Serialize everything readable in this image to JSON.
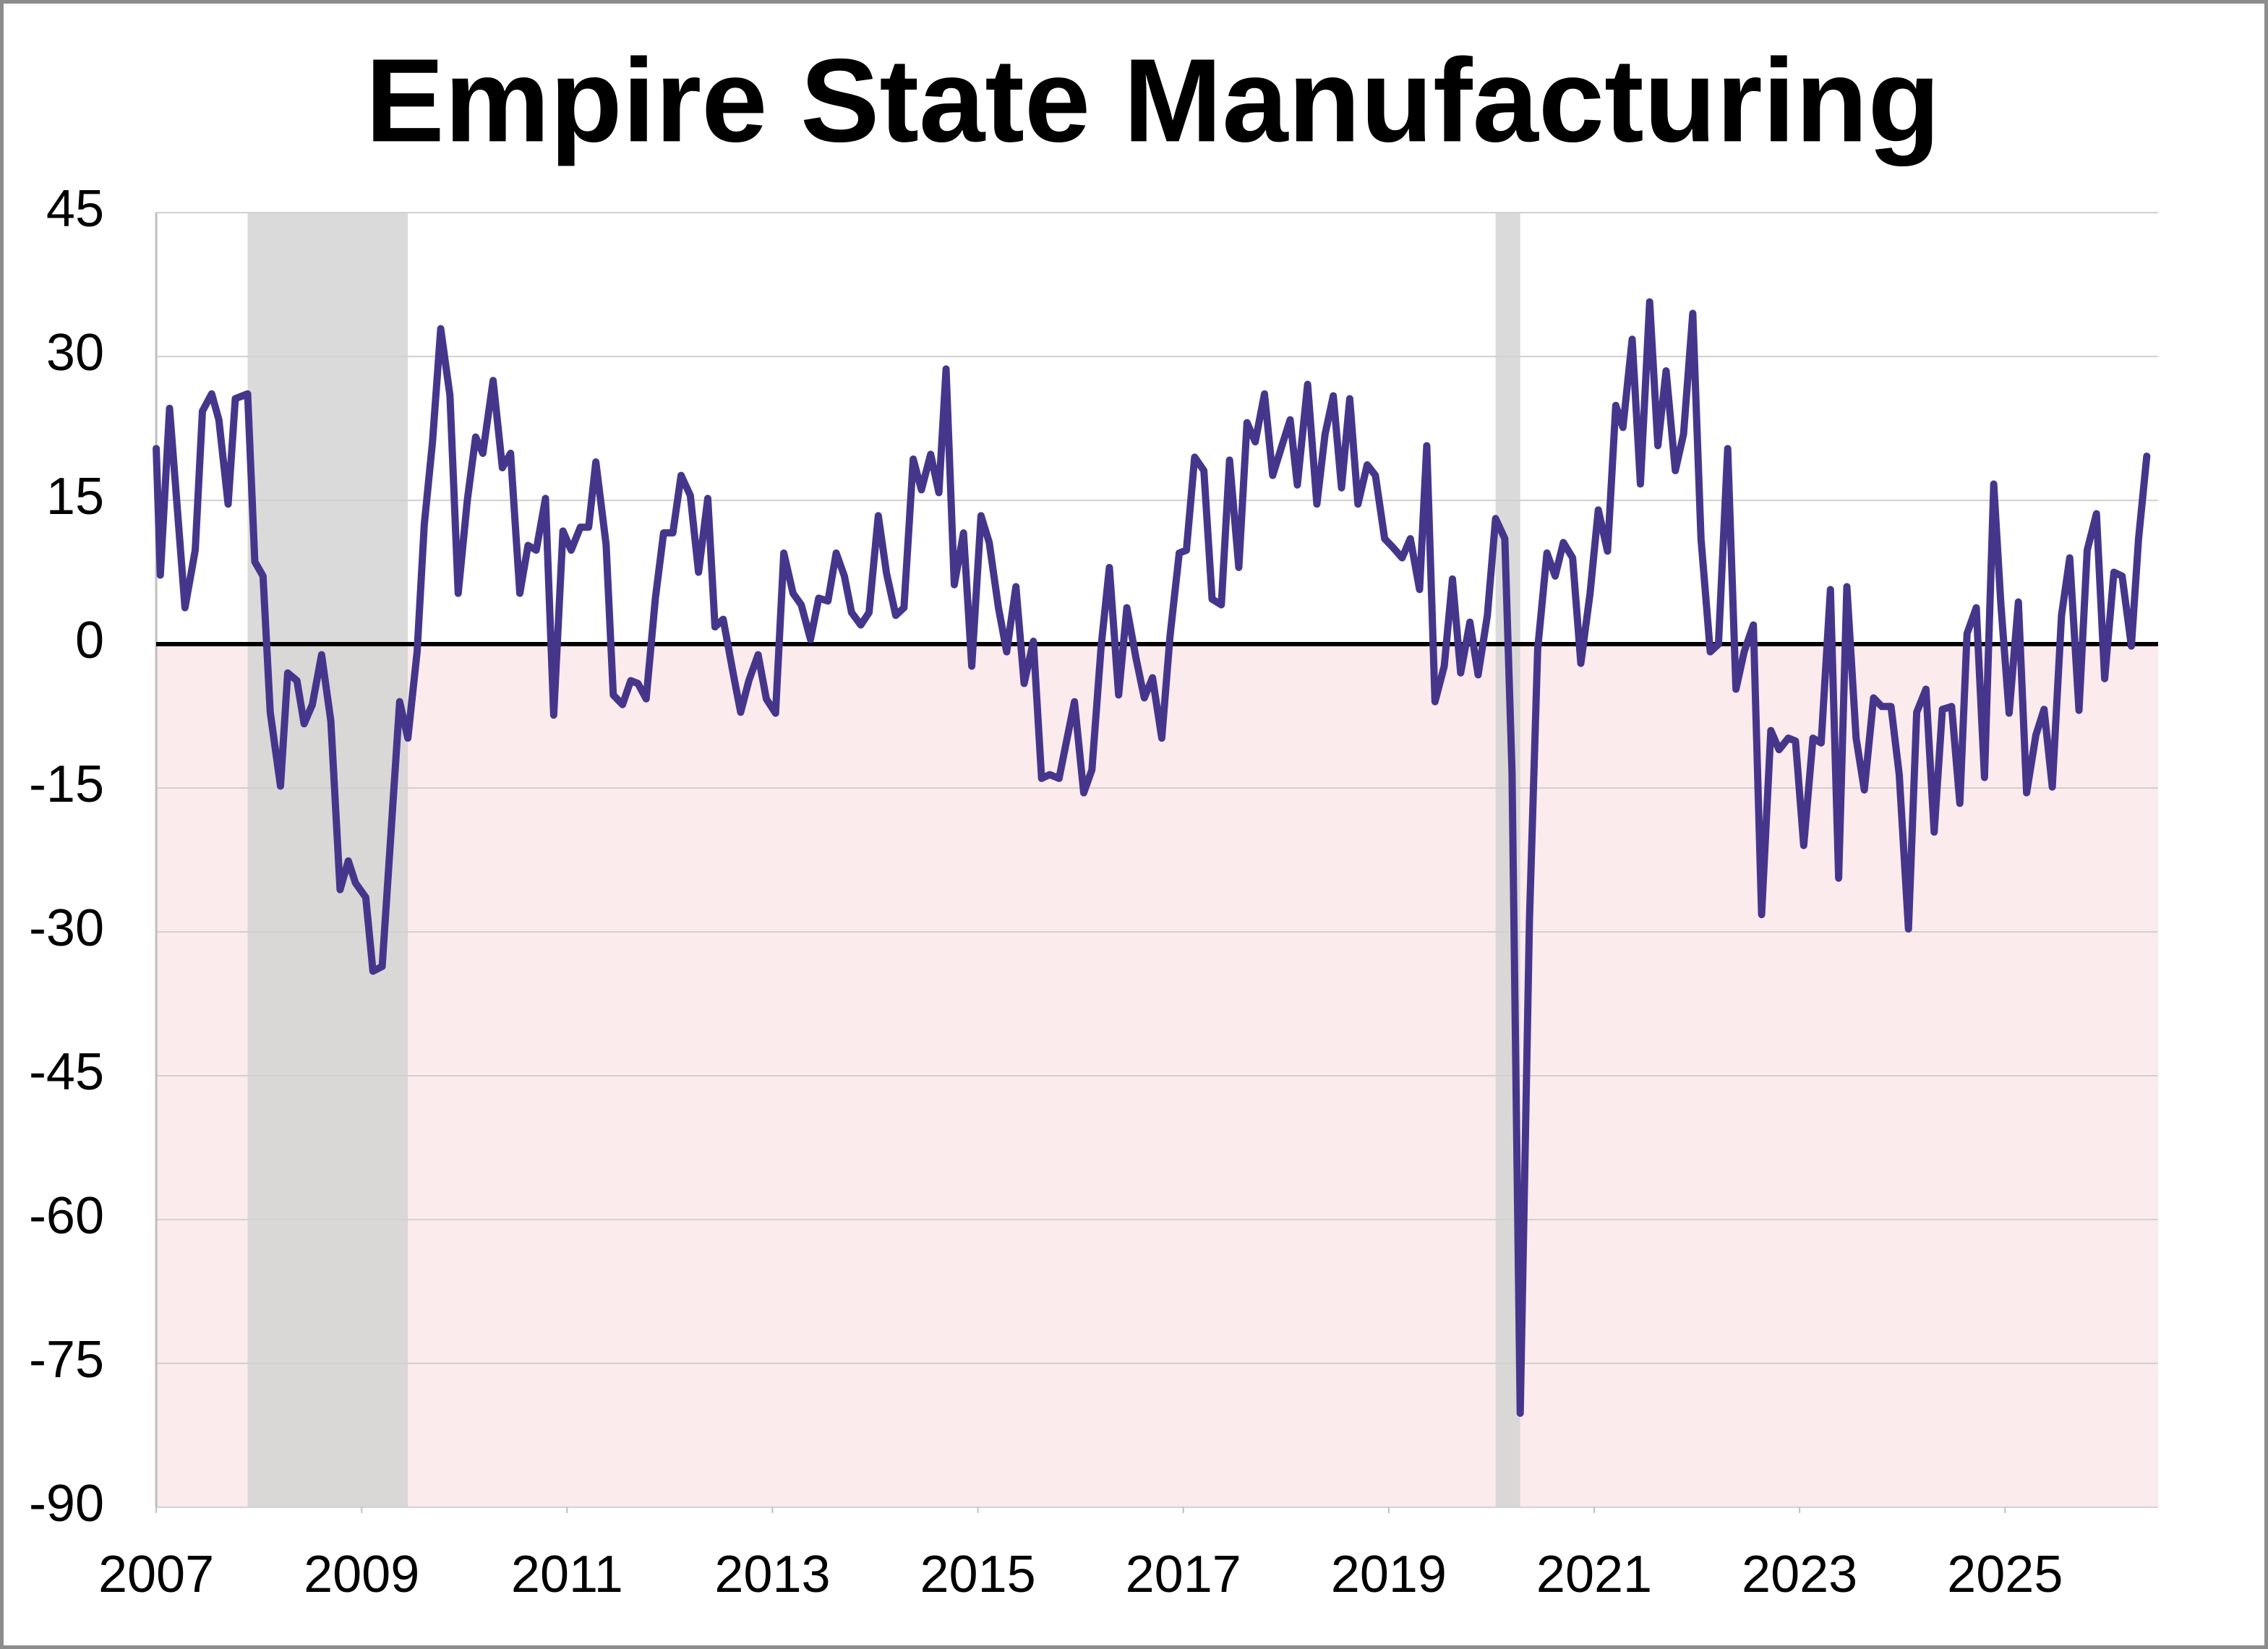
{
  "chart_data": {
    "type": "line",
    "title": "Empire State Manufacturing",
    "color": "#46368b",
    "negative_shading": "#fcebec",
    "recession_color": "#d3d3d3",
    "recessions": [
      [
        2007.89,
        2009.45
      ],
      [
        2020.04,
        2020.28
      ]
    ],
    "grid": true,
    "xlim": [
      2007,
      2026.49
    ],
    "xticks": [
      2007,
      2009,
      2011,
      2013,
      2015,
      2017,
      2019,
      2021,
      2023,
      2025
    ],
    "ylim": [
      -90,
      45
    ],
    "yticks": [
      -90,
      -75,
      -60,
      -45,
      -30,
      -15,
      0,
      15,
      30,
      45
    ],
    "x": [
      2007.0,
      2007.04,
      2007.13,
      2007.28,
      2007.38,
      2007.45,
      2007.54,
      2007.61,
      2007.7,
      2007.77,
      2007.89,
      2007.96,
      2008.04,
      2008.11,
      2008.21,
      2008.28,
      2008.37,
      2008.44,
      2008.52,
      2008.61,
      2008.7,
      2008.79,
      2008.87,
      2008.94,
      2009.04,
      2009.11,
      2009.2,
      2009.37,
      2009.45,
      2009.54,
      2009.61,
      2009.69,
      2009.77,
      2009.86,
      2009.94,
      2010.03,
      2010.11,
      2010.18,
      2010.28,
      2010.37,
      2010.45,
      2010.54,
      2010.62,
      2010.7,
      2010.79,
      2010.87,
      2010.96,
      2011.04,
      2011.13,
      2011.21,
      2011.28,
      2011.38,
      2011.45,
      2011.54,
      2011.62,
      2011.69,
      2011.77,
      2011.86,
      2011.94,
      2012.03,
      2012.11,
      2012.2,
      2012.28,
      2012.37,
      2012.44,
      2012.52,
      2012.62,
      2012.69,
      2012.77,
      2012.86,
      2012.94,
      2013.03,
      2013.11,
      2013.2,
      2013.28,
      2013.37,
      2013.45,
      2013.54,
      2013.62,
      2013.7,
      2013.77,
      2013.86,
      2013.94,
      2014.03,
      2014.11,
      2014.2,
      2014.28,
      2014.37,
      2014.45,
      2014.54,
      2014.62,
      2014.69,
      2014.77,
      2014.86,
      2014.94,
      2015.03,
      2015.11,
      2015.2,
      2015.28,
      2015.37,
      2015.45,
      2015.54,
      2015.62,
      2015.7,
      2015.79,
      2015.94,
      2016.03,
      2016.11,
      2016.2,
      2016.28,
      2016.37,
      2016.45,
      2016.54,
      2016.62,
      2016.7,
      2016.79,
      2016.87,
      2016.96,
      2017.03,
      2017.11,
      2017.2,
      2017.28,
      2017.37,
      2017.45,
      2017.54,
      2017.62,
      2017.7,
      2017.79,
      2017.87,
      2017.96,
      2018.04,
      2018.11,
      2018.21,
      2018.3,
      2018.38,
      2018.46,
      2018.54,
      2018.62,
      2018.7,
      2018.79,
      2018.87,
      2018.96,
      2019.04,
      2019.13,
      2019.21,
      2019.3,
      2019.37,
      2019.45,
      2019.54,
      2019.62,
      2019.7,
      2019.79,
      2019.87,
      2019.96,
      2020.04,
      2020.13,
      2020.2,
      2020.28,
      2020.37,
      2020.45,
      2020.54,
      2020.62,
      2020.7,
      2020.79,
      2020.87,
      2020.96,
      2021.04,
      2021.13,
      2021.21,
      2021.28,
      2021.37,
      2021.45,
      2021.54,
      2021.62,
      2021.7,
      2021.79,
      2021.87,
      2021.96,
      2022.04,
      2022.13,
      2022.21,
      2022.3,
      2022.38,
      2022.46,
      2022.55,
      2022.63,
      2022.72,
      2022.8,
      2022.89,
      2022.96,
      2023.04,
      2023.13,
      2023.21,
      2023.3,
      2023.38,
      2023.46,
      2023.55,
      2023.63,
      2023.72,
      2023.8,
      2023.89,
      2023.97,
      2024.06,
      2024.14,
      2024.23,
      2024.31,
      2024.39,
      2024.48,
      2024.56,
      2024.63,
      2024.72,
      2024.8,
      2024.89,
      2024.96,
      2025.04,
      2025.13,
      2025.21,
      2025.3,
      2025.38,
      2025.46,
      2025.55,
      2025.63,
      2025.72,
      2025.8,
      2025.89,
      2025.97,
      2026.06,
      2026.14,
      2026.23,
      2026.3,
      2026.38
    ],
    "values": [
      20.4,
      7.2,
      24.6,
      3.8,
      9.8,
      24.3,
      26.1,
      23.4,
      14.6,
      25.6,
      26.1,
      8.6,
      7.1,
      -7.1,
      -14.8,
      -3.0,
      -3.8,
      -8.3,
      -6.3,
      -1.1,
      -8.0,
      -25.6,
      -22.6,
      -24.9,
      -26.4,
      -34.1,
      -33.6,
      -6.0,
      -9.8,
      -0.8,
      12.5,
      21.1,
      32.9,
      25.9,
      5.3,
      15.1,
      21.6,
      19.9,
      27.5,
      18.4,
      19.9,
      5.3,
      10.3,
      9.8,
      15.2,
      -7.4,
      11.8,
      9.8,
      12.2,
      12.2,
      19.0,
      10.4,
      -5.3,
      -6.3,
      -3.8,
      -4.1,
      -5.7,
      4.8,
      11.6,
      11.6,
      17.6,
      15.5,
      7.5,
      15.2,
      1.8,
      2.6,
      -3.2,
      -7.1,
      -3.8,
      -1.1,
      -5.7,
      -7.2,
      9.5,
      5.3,
      4.1,
      0.5,
      4.8,
      4.5,
      9.5,
      7.1,
      3.3,
      2.0,
      3.3,
      13.4,
      7.4,
      3.0,
      3.8,
      19.3,
      16.1,
      19.8,
      15.8,
      28.7,
      6.2,
      11.6,
      -2.3,
      13.4,
      10.6,
      3.8,
      -0.8,
      6.0,
      -4.1,
      0.3,
      -14.0,
      -13.6,
      -14.0,
      -6.0,
      -15.5,
      -13.1,
      -0.2,
      8.0,
      -5.3,
      3.8,
      -1.5,
      -5.6,
      -3.5,
      -9.8,
      0.8,
      9.5,
      9.8,
      19.5,
      18.1,
      4.7,
      4.1,
      19.2,
      8.0,
      23.1,
      21.1,
      26.1,
      17.6,
      20.7,
      23.4,
      16.6,
      27.1,
      14.6,
      21.9,
      25.9,
      16.3,
      25.6,
      14.6,
      18.7,
      17.6,
      11.0,
      10.1,
      9.0,
      11.0,
      5.7,
      20.7,
      -6.0,
      -2.3,
      6.8,
      -3.0,
      2.3,
      -3.2,
      3.0,
      13.1,
      11.0,
      -13.3,
      -80.2,
      -28.7,
      -0.5,
      9.5,
      7.1,
      10.6,
      9.0,
      -2.0,
      5.3,
      14.0,
      9.7,
      24.9,
      22.6,
      31.8,
      16.7,
      35.7,
      20.7,
      28.5,
      18.1,
      21.9,
      34.5,
      11.0,
      -0.8,
      0,
      20.4,
      -4.7,
      -0.8,
      2.0,
      -28.2,
      -9.0,
      -11.0,
      -9.8,
      -10.1,
      -21.0,
      -9.8,
      -10.3,
      5.7,
      -24.4,
      6.0,
      -9.8,
      -15.2,
      -5.6,
      -6.5,
      -6.5,
      -13.6,
      -29.7,
      -7.1,
      -4.7,
      -19.6,
      -6.8,
      -6.5,
      -16.6,
      1.1,
      3.8,
      -13.9,
      16.7,
      4.1,
      -7.2,
      4.4,
      -15.5,
      -9.5,
      -6.8,
      -14.9,
      3.0,
      9.0,
      -6.9,
      9.8,
      13.6,
      -3.6,
      7.5,
      7.1,
      -0.2,
      11.0,
      19.6
    ]
  }
}
